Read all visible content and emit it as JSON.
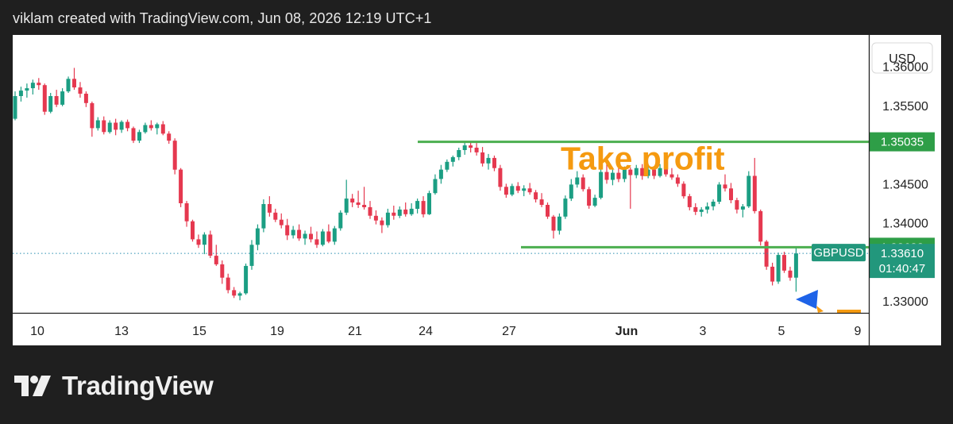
{
  "header": {
    "attribution": "viklam created with TradingView.com, Jun 08, 2026 12:19 UTC+1"
  },
  "brand": {
    "name": "TradingView"
  },
  "colors": {
    "up": "#1b9e83",
    "down": "#e5384f",
    "level_line": "#4caf50",
    "price_tag_green": "#2e9e47",
    "symbol_tag": "#22977c",
    "annotation": "#f59a10",
    "marker": "#1e63e8",
    "dotted_line": "#2a8fb0"
  },
  "chart_data": {
    "type": "candlestick",
    "symbol": "GBPUSD",
    "currency_label": "USD",
    "y_ticks": [
      "1.36000",
      "1.35500",
      "1.34500",
      "1.34000",
      "1.33000"
    ],
    "ylim": [
      1.3285,
      1.3632
    ],
    "x_ticks": [
      "10",
      "13",
      "15",
      "19",
      "21",
      "24",
      "27",
      "Jun",
      "3",
      "5",
      "9"
    ],
    "annotation": {
      "text": "Take profit"
    },
    "levels": [
      {
        "label": "1.35035",
        "value": 1.35035
      },
      {
        "label": "1.33688",
        "value": 1.33688
      }
    ],
    "last_price": {
      "value": 1.3361,
      "label": "1.33610",
      "countdown": "01:40:47"
    },
    "candles": [
      [
        1.3533,
        1.3568,
        1.3531,
        1.3562
      ],
      [
        1.3562,
        1.3574,
        1.3555,
        1.3569
      ],
      [
        1.3569,
        1.3578,
        1.356,
        1.3572
      ],
      [
        1.3572,
        1.3583,
        1.3564,
        1.3579
      ],
      [
        1.3579,
        1.3585,
        1.357,
        1.3576
      ],
      [
        1.3576,
        1.3578,
        1.3538,
        1.3542
      ],
      [
        1.3542,
        1.3566,
        1.354,
        1.3562
      ],
      [
        1.3562,
        1.357,
        1.3548,
        1.3551
      ],
      [
        1.3551,
        1.3572,
        1.3549,
        1.3568
      ],
      [
        1.3568,
        1.3587,
        1.3566,
        1.3584
      ],
      [
        1.3584,
        1.3598,
        1.357,
        1.3573
      ],
      [
        1.3573,
        1.358,
        1.356,
        1.3565
      ],
      [
        1.3565,
        1.3568,
        1.3548,
        1.3553
      ],
      [
        1.3553,
        1.3555,
        1.351,
        1.3521
      ],
      [
        1.3521,
        1.3535,
        1.3518,
        1.3531
      ],
      [
        1.3531,
        1.3536,
        1.3513,
        1.3516
      ],
      [
        1.3516,
        1.3531,
        1.3514,
        1.3528
      ],
      [
        1.3528,
        1.3533,
        1.3512,
        1.3519
      ],
      [
        1.3519,
        1.3531,
        1.3515,
        1.3529
      ],
      [
        1.3529,
        1.3532,
        1.3517,
        1.3521
      ],
      [
        1.3521,
        1.3523,
        1.3502,
        1.3505
      ],
      [
        1.3505,
        1.3519,
        1.3502,
        1.3516
      ],
      [
        1.3516,
        1.3528,
        1.3514,
        1.3525
      ],
      [
        1.3525,
        1.3531,
        1.3518,
        1.3521
      ],
      [
        1.3521,
        1.3528,
        1.3513,
        1.3526
      ],
      [
        1.3526,
        1.353,
        1.3512,
        1.3514
      ],
      [
        1.3514,
        1.3517,
        1.3501,
        1.3505
      ],
      [
        1.3505,
        1.3508,
        1.3462,
        1.3468
      ],
      [
        1.3468,
        1.347,
        1.342,
        1.3425
      ],
      [
        1.3425,
        1.3428,
        1.3395,
        1.3402
      ],
      [
        1.3402,
        1.3404,
        1.3376,
        1.3379
      ],
      [
        1.3379,
        1.3385,
        1.3368,
        1.3372
      ],
      [
        1.3372,
        1.3388,
        1.336,
        1.3385
      ],
      [
        1.3385,
        1.339,
        1.3355,
        1.3358
      ],
      [
        1.3358,
        1.3372,
        1.3345,
        1.3347
      ],
      [
        1.3347,
        1.3352,
        1.3322,
        1.333
      ],
      [
        1.333,
        1.3335,
        1.331,
        1.3314
      ],
      [
        1.3314,
        1.3318,
        1.3304,
        1.3307
      ],
      [
        1.3307,
        1.3312,
        1.3301,
        1.331
      ],
      [
        1.331,
        1.3348,
        1.3308,
        1.3345
      ],
      [
        1.3345,
        1.3378,
        1.334,
        1.3372
      ],
      [
        1.3372,
        1.3398,
        1.3365,
        1.3393
      ],
      [
        1.3393,
        1.343,
        1.3388,
        1.3424
      ],
      [
        1.3424,
        1.3434,
        1.3408,
        1.3413
      ],
      [
        1.3413,
        1.3418,
        1.3401,
        1.3404
      ],
      [
        1.3404,
        1.3412,
        1.3393,
        1.3397
      ],
      [
        1.3397,
        1.3405,
        1.3378,
        1.3384
      ],
      [
        1.3384,
        1.3396,
        1.338,
        1.3391
      ],
      [
        1.3391,
        1.3398,
        1.3377,
        1.338
      ],
      [
        1.338,
        1.339,
        1.3372,
        1.3386
      ],
      [
        1.3386,
        1.3395,
        1.3375,
        1.3379
      ],
      [
        1.3379,
        1.3389,
        1.3368,
        1.3372
      ],
      [
        1.3372,
        1.3392,
        1.337,
        1.3389
      ],
      [
        1.3389,
        1.3398,
        1.3374,
        1.3376
      ],
      [
        1.3376,
        1.3396,
        1.3372,
        1.3393
      ],
      [
        1.3393,
        1.3416,
        1.339,
        1.3413
      ],
      [
        1.3413,
        1.3455,
        1.341,
        1.3431
      ],
      [
        1.3431,
        1.3437,
        1.342,
        1.3426
      ],
      [
        1.3426,
        1.3441,
        1.3419,
        1.3423
      ],
      [
        1.3423,
        1.3446,
        1.3417,
        1.342
      ],
      [
        1.342,
        1.3428,
        1.3405,
        1.3409
      ],
      [
        1.3409,
        1.3416,
        1.3398,
        1.3403
      ],
      [
        1.3403,
        1.3407,
        1.3387,
        1.3397
      ],
      [
        1.3397,
        1.3418,
        1.3394,
        1.3413
      ],
      [
        1.3413,
        1.3422,
        1.3404,
        1.3409
      ],
      [
        1.3409,
        1.3421,
        1.3406,
        1.3417
      ],
      [
        1.3417,
        1.3426,
        1.3408,
        1.3411
      ],
      [
        1.3411,
        1.3425,
        1.3409,
        1.3418
      ],
      [
        1.3418,
        1.3431,
        1.3412,
        1.3428
      ],
      [
        1.3428,
        1.3434,
        1.3407,
        1.3411
      ],
      [
        1.3411,
        1.3441,
        1.341,
        1.3438
      ],
      [
        1.3438,
        1.3462,
        1.3436,
        1.3456
      ],
      [
        1.3456,
        1.3474,
        1.345,
        1.3468
      ],
      [
        1.3468,
        1.3481,
        1.3465,
        1.3478
      ],
      [
        1.3478,
        1.3486,
        1.3472,
        1.3484
      ],
      [
        1.3484,
        1.3496,
        1.348,
        1.3493
      ],
      [
        1.3493,
        1.3503,
        1.3487,
        1.3499
      ],
      [
        1.3499,
        1.3504,
        1.349,
        1.3496
      ],
      [
        1.3496,
        1.3502,
        1.3486,
        1.349
      ],
      [
        1.349,
        1.3497,
        1.3472,
        1.3476
      ],
      [
        1.3476,
        1.3488,
        1.3468,
        1.3483
      ],
      [
        1.3483,
        1.3486,
        1.3466,
        1.347
      ],
      [
        1.347,
        1.3474,
        1.3441,
        1.3446
      ],
      [
        1.3446,
        1.345,
        1.3432,
        1.3436
      ],
      [
        1.3436,
        1.345,
        1.3434,
        1.3447
      ],
      [
        1.3447,
        1.3452,
        1.3438,
        1.3441
      ],
      [
        1.3441,
        1.3448,
        1.3434,
        1.3444
      ],
      [
        1.3444,
        1.3451,
        1.3436,
        1.3439
      ],
      [
        1.3439,
        1.3442,
        1.3426,
        1.343
      ],
      [
        1.343,
        1.3438,
        1.342,
        1.3423
      ],
      [
        1.3423,
        1.3426,
        1.3405,
        1.3408
      ],
      [
        1.3408,
        1.341,
        1.338,
        1.339
      ],
      [
        1.339,
        1.3412,
        1.3385,
        1.3408
      ],
      [
        1.3408,
        1.3435,
        1.3405,
        1.3431
      ],
      [
        1.3431,
        1.3456,
        1.3428,
        1.3449
      ],
      [
        1.3449,
        1.3466,
        1.3445,
        1.3458
      ],
      [
        1.3458,
        1.3462,
        1.344,
        1.3443
      ],
      [
        1.3443,
        1.3446,
        1.3418,
        1.3422
      ],
      [
        1.3422,
        1.3436,
        1.342,
        1.3432
      ],
      [
        1.3432,
        1.3472,
        1.343,
        1.3465
      ],
      [
        1.3465,
        1.3476,
        1.345,
        1.3455
      ],
      [
        1.3455,
        1.3468,
        1.3448,
        1.3464
      ],
      [
        1.3464,
        1.347,
        1.3452,
        1.3456
      ],
      [
        1.3456,
        1.3472,
        1.3452,
        1.3468
      ],
      [
        1.3468,
        1.3471,
        1.3418,
        1.3461
      ],
      [
        1.3461,
        1.3474,
        1.3457,
        1.347
      ],
      [
        1.347,
        1.3475,
        1.3455,
        1.346
      ],
      [
        1.346,
        1.3472,
        1.3457,
        1.3468
      ],
      [
        1.3468,
        1.3471,
        1.3456,
        1.346
      ],
      [
        1.346,
        1.3475,
        1.3458,
        1.347
      ],
      [
        1.347,
        1.3474,
        1.3459,
        1.3462
      ],
      [
        1.3462,
        1.347,
        1.3455,
        1.3458
      ],
      [
        1.3458,
        1.3462,
        1.3446,
        1.345
      ],
      [
        1.345,
        1.3453,
        1.3431,
        1.3434
      ],
      [
        1.3434,
        1.3437,
        1.3416,
        1.342
      ],
      [
        1.342,
        1.3425,
        1.341,
        1.3414
      ],
      [
        1.3414,
        1.342,
        1.3408,
        1.3417
      ],
      [
        1.3417,
        1.3426,
        1.3412,
        1.3421
      ],
      [
        1.3421,
        1.343,
        1.3416,
        1.3427
      ],
      [
        1.3427,
        1.3452,
        1.3424,
        1.3449
      ],
      [
        1.3449,
        1.3462,
        1.344,
        1.3444
      ],
      [
        1.3444,
        1.3451,
        1.3425,
        1.3429
      ],
      [
        1.3429,
        1.3432,
        1.3412,
        1.3417
      ],
      [
        1.3417,
        1.3424,
        1.3407,
        1.3421
      ],
      [
        1.3421,
        1.3466,
        1.3419,
        1.346
      ],
      [
        1.346,
        1.3483,
        1.3412,
        1.3415
      ],
      [
        1.3415,
        1.3417,
        1.3371,
        1.3376
      ],
      [
        1.3376,
        1.3378,
        1.334,
        1.3344
      ],
      [
        1.3344,
        1.3349,
        1.332,
        1.3325
      ],
      [
        1.3325,
        1.3362,
        1.3322,
        1.3359
      ],
      [
        1.3359,
        1.3363,
        1.3336,
        1.3339
      ],
      [
        1.3339,
        1.3344,
        1.3326,
        1.333
      ],
      [
        1.333,
        1.3368,
        1.3312,
        1.3361
      ]
    ]
  }
}
